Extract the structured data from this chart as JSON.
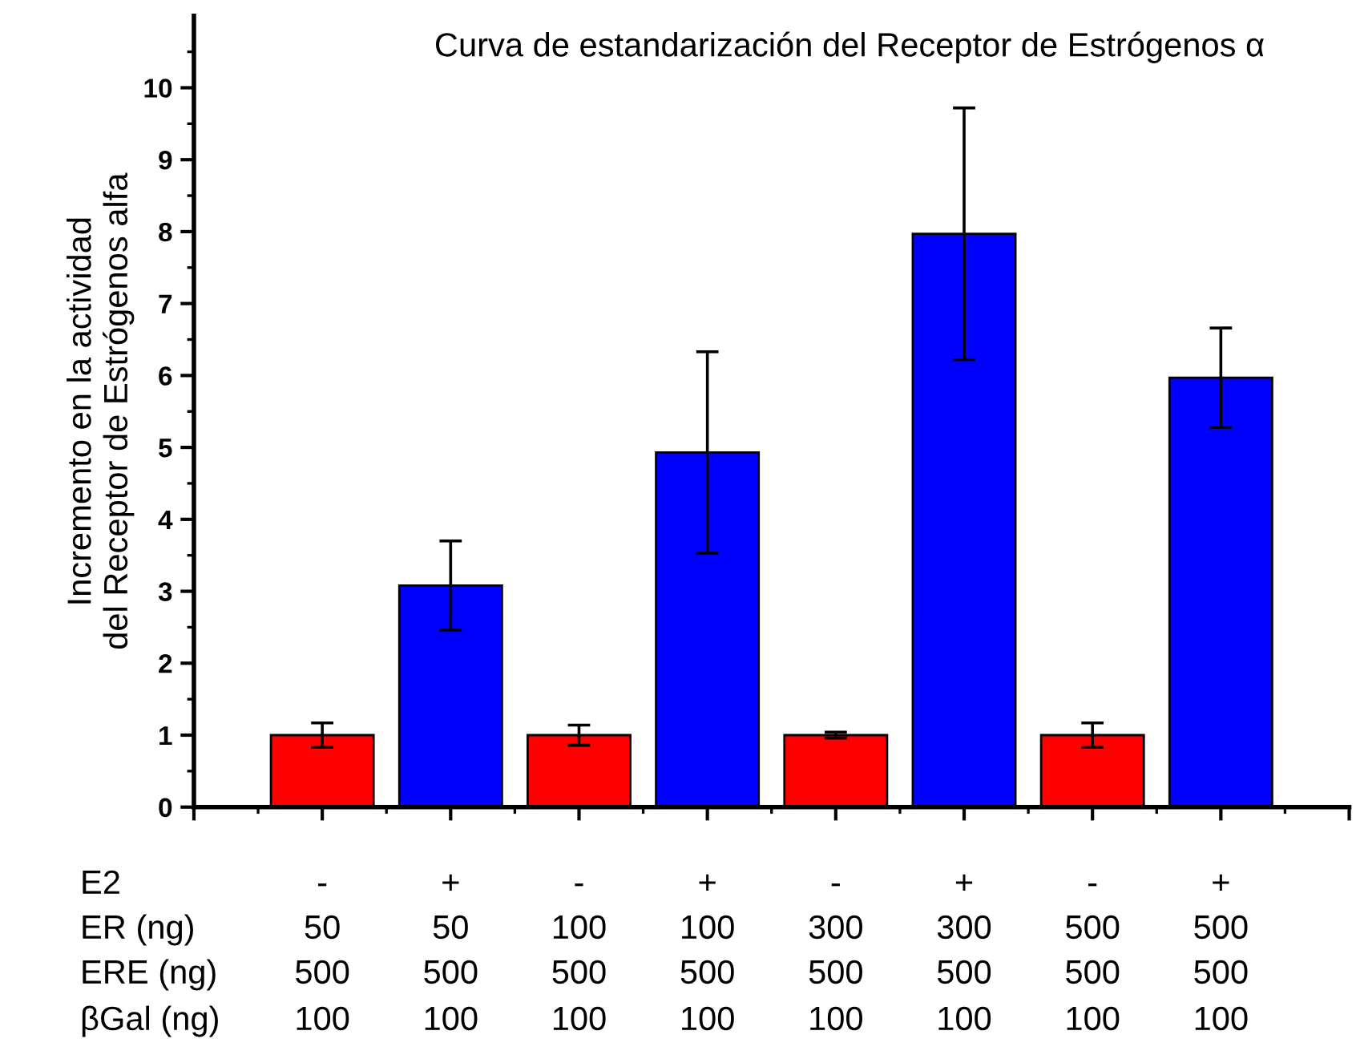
{
  "chart_data": {
    "type": "bar",
    "title": "Curva de estandarización del Receptor de Estrógenos α",
    "ylabel": "Incremento en la actividad\ndel Receptor de Estrógenos alfa",
    "categories": [
      null,
      null,
      null,
      null,
      null,
      null,
      null,
      null
    ],
    "values": [
      1.0,
      3.08,
      1.0,
      4.93,
      1.0,
      7.97,
      1.0,
      5.97
    ],
    "errors": [
      0.17,
      0.62,
      0.14,
      1.4,
      0.04,
      1.75,
      0.17,
      0.69
    ],
    "colors": [
      "#ff0000",
      "#0000ff",
      "#ff0000",
      "#0000ff",
      "#ff0000",
      "#0000ff",
      "#ff0000",
      "#0000ff"
    ],
    "ylim": [
      0,
      11
    ],
    "yticks": [
      0,
      1,
      2,
      3,
      4,
      5,
      6,
      7,
      8,
      9,
      10
    ],
    "grid": false,
    "legend": false,
    "annotations": [
      "E2",
      "-",
      "+",
      "-",
      "+",
      "-",
      "+",
      "-",
      "+",
      "ER (ng)",
      "50",
      "50",
      "100",
      "100",
      "300",
      "300",
      "500",
      "500",
      "ERE (ng)",
      "500",
      "500",
      "500",
      "500",
      "500",
      "500",
      "500",
      "500",
      "βGal (ng)",
      "100",
      "100",
      "100",
      "100",
      "100",
      "100",
      "100",
      "100"
    ]
  }
}
